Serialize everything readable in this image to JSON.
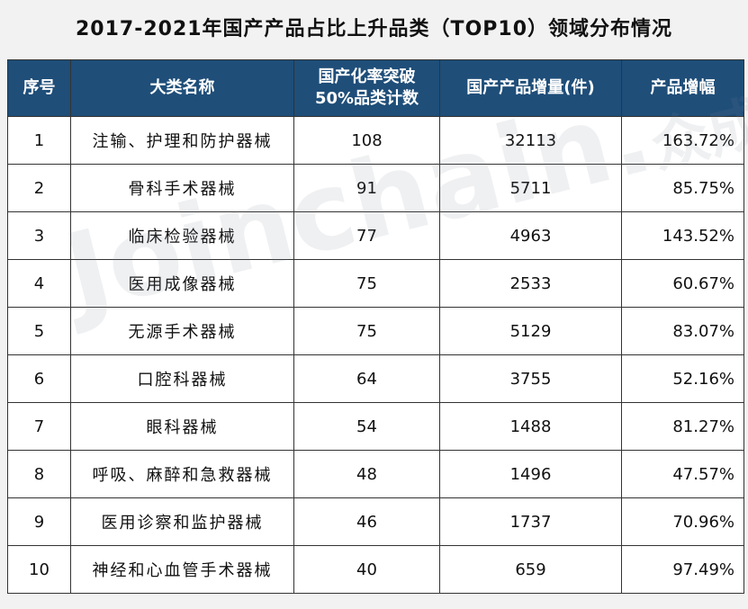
{
  "title": "2017-2021年国产产品占比上升品类（TOP10）领域分布情况",
  "table": {
    "headers": [
      "序号",
      "大类名称",
      "国产化率突破\n50%品类计数",
      "国产产品增量(件)",
      "产品增幅"
    ],
    "rows": [
      [
        "1",
        "注输、护理和防护器械",
        "108",
        "32113",
        "163.72%"
      ],
      [
        "2",
        "骨科手术器械",
        "91",
        "5711",
        "85.75%"
      ],
      [
        "3",
        "临床检验器械",
        "77",
        "4963",
        "143.52%"
      ],
      [
        "4",
        "医用成像器械",
        "75",
        "2533",
        "60.67%"
      ],
      [
        "5",
        "无源手术器械",
        "75",
        "5129",
        "83.07%"
      ],
      [
        "6",
        "口腔科器械",
        "64",
        "3755",
        "52.16%"
      ],
      [
        "7",
        "眼科器械",
        "54",
        "1488",
        "81.27%"
      ],
      [
        "8",
        "呼吸、麻醉和急救器械",
        "48",
        "1496",
        "47.57%"
      ],
      [
        "9",
        "医用诊察和监护器械",
        "46",
        "1737",
        "70.96%"
      ],
      [
        "10",
        "神经和心血管手术器械",
        "40",
        "659",
        "97.49%"
      ]
    ]
  },
  "watermark": {
    "latin": "Joinchain.",
    "cn": "众成数科"
  },
  "colors": {
    "header_bg": "#1f4e79",
    "header_text": "#ffffff",
    "border": "#333333",
    "page_bg": "#f2f2f2"
  }
}
